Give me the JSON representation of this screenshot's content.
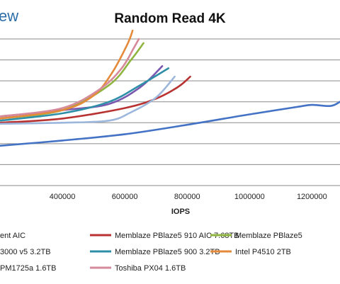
{
  "header": {
    "brand_text": "ew",
    "brand_color": "#2b6ea8"
  },
  "chart_data": {
    "type": "line",
    "title": "Random Read 4K",
    "xlabel": "IOPS",
    "ylabel": "",
    "x_ticks": [
      "400000",
      "600000",
      "800000",
      "1000000",
      "1200000"
    ],
    "x_tick_values": [
      400000,
      600000,
      800000,
      1000000,
      1200000
    ],
    "xlim": [
      200000,
      1290000
    ],
    "ylim": [
      0,
      7
    ],
    "grid": true,
    "legend_position": "bottom",
    "series": [
      {
        "name": "ent AIC",
        "color": "#4472c4",
        "x": [
          200000,
          400000,
          600000,
          800000,
          1000000,
          1150000,
          1200000,
          1260000,
          1290000
        ],
        "y": [
          1.9,
          2.15,
          2.45,
          2.9,
          3.4,
          3.75,
          3.85,
          3.8,
          4.0
        ]
      },
      {
        "name": "Memblaze PBlaze5 910 AIC 7.68TB",
        "color": "#b83232",
        "x": [
          200000,
          400000,
          600000,
          700000,
          770000,
          810000
        ],
        "y": [
          3.0,
          3.2,
          3.7,
          4.15,
          4.7,
          5.2
        ]
      },
      {
        "name": "Memblaze PBlaze5",
        "color": "#8fb440",
        "x": [
          200000,
          400000,
          550000,
          620000,
          660000
        ],
        "y": [
          3.2,
          3.6,
          4.8,
          6.0,
          6.8
        ]
      },
      {
        "name": "3000 v5 3.2TB",
        "color": "#7a58b0",
        "x": [
          200000,
          400000,
          550000,
          650000,
          720000
        ],
        "y": [
          3.3,
          3.6,
          3.9,
          4.7,
          5.7
        ]
      },
      {
        "name": "Memblaze PBlaze5 900 3.2TB",
        "color": "#2f8fa8",
        "x": [
          200000,
          400000,
          550000,
          650000,
          740000
        ],
        "y": [
          3.1,
          3.45,
          4.0,
          4.8,
          5.6
        ]
      },
      {
        "name": "Intel P4510 2TB",
        "color": "#e58a3a",
        "x": [
          200000,
          400000,
          500000,
          560000,
          610000,
          625000
        ],
        "y": [
          3.2,
          3.6,
          4.3,
          5.4,
          6.8,
          7.4
        ]
      },
      {
        "name": "PM1725a 1.6TB",
        "color": "#9db6dc",
        "x": [
          200000,
          400000,
          550000,
          620000,
          700000,
          760000
        ],
        "y": [
          2.95,
          3.0,
          3.1,
          3.5,
          4.2,
          5.2
        ]
      },
      {
        "name": "Toshiba PX04 1.6TB",
        "color": "#d68a9a",
        "x": [
          200000,
          400000,
          520000,
          590000,
          630000,
          645000
        ],
        "y": [
          3.3,
          3.7,
          4.6,
          5.6,
          6.6,
          7.0
        ]
      }
    ]
  }
}
